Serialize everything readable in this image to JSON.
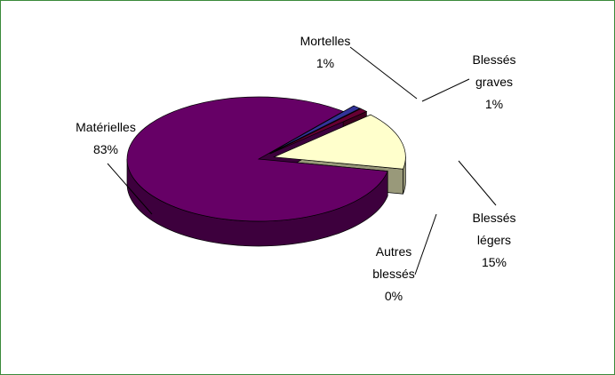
{
  "chart_data": {
    "type": "pie",
    "categories": [
      "Mortelles",
      "Blessés graves",
      "Blessés légers",
      "Autres blessés",
      "Matérielles"
    ],
    "values": [
      1,
      1,
      15,
      0,
      83
    ],
    "value_labels": [
      "1%",
      "1%",
      "15%",
      "0%",
      "83%"
    ],
    "colors": [
      "#333399",
      "#660033",
      "#ffffcc",
      "#669999",
      "#660066"
    ]
  }
}
